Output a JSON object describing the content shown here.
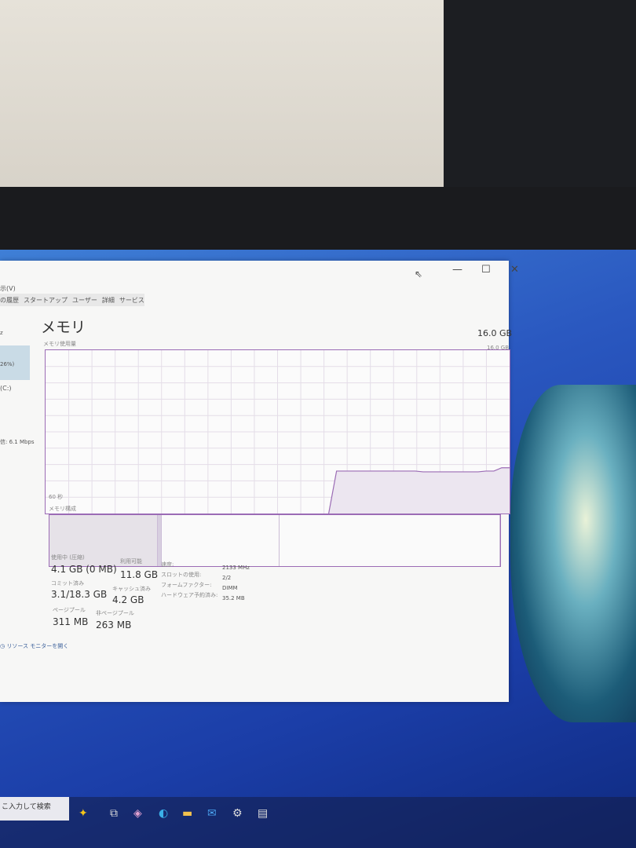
{
  "window": {
    "menu_view": "示(V)",
    "tabs": [
      "の履歴",
      "スタートアップ",
      "ユーザー",
      "詳細",
      "サービス"
    ],
    "controls": {
      "minimize": "—",
      "maximize": "☐",
      "close": "✕"
    }
  },
  "sidebar": {
    "items": [
      "z",
      "26%)",
      "(C:)",
      "信: 6.1 Mbps"
    ]
  },
  "memory": {
    "title": "メモリ",
    "total": "16.0 GB",
    "usage_label": "メモリ使用量",
    "chart_max": "16.0 GB",
    "time_label": "60 秒",
    "chart_min": "0",
    "composition_label": "メモリ構成",
    "usage_series_percent": [
      0,
      0,
      0,
      0,
      0,
      0,
      0,
      0,
      0,
      0,
      0,
      0,
      0,
      0,
      0,
      0,
      0,
      0,
      0,
      0,
      0,
      0,
      0,
      0,
      0,
      0,
      0,
      0,
      0,
      0,
      0,
      0,
      0,
      0,
      0,
      0,
      0,
      26,
      26,
      26,
      26,
      26,
      26,
      26,
      26,
      26,
      26,
      26,
      25.5,
      25.5,
      25.5,
      25.5,
      25.5,
      25.5,
      25.5,
      25.5,
      26,
      26,
      28,
      28
    ],
    "composition": {
      "in_use_percent": 24,
      "modified_percent": 1,
      "standby_percent": 26,
      "free_percent": 49
    }
  },
  "stats": {
    "in_use_label": "使用中 (圧縮)",
    "in_use": "4.1 GB (0 MB)",
    "available_label": "利用可能",
    "available": "11.8 GB",
    "committed_label": "コミット済み",
    "committed": "3.1/18.3 GB",
    "cached_label": "キャッシュ済み",
    "cached": "4.2 GB",
    "paged_label": "ページプール",
    "paged": "311 MB",
    "nonpaged_label": "非ページプール",
    "nonpaged": "263 MB",
    "speed_label": "速度:",
    "speed": "2133 MHz",
    "slots_label": "スロットの使用:",
    "slots": "2/2",
    "form_label": "フォームファクター:",
    "form": "DIMM",
    "reserved_label": "ハードウェア予約済み:",
    "reserved": "35.2 MB"
  },
  "footer": {
    "resource_monitor": "リソース モニターを開く"
  },
  "taskbar": {
    "search_placeholder": "こ入力して検索"
  },
  "colors": {
    "accent": "#9b6bb5",
    "fill": "#ece6f0"
  }
}
